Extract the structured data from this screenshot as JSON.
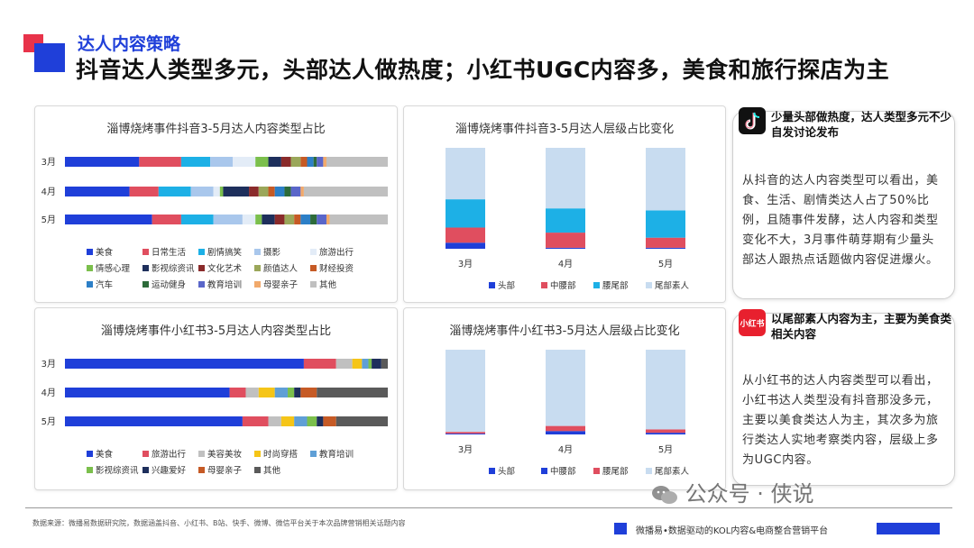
{
  "header": {
    "subtitle": "达人内容策略",
    "title": "抖音达人类型多元，头部达人做热度；小红书UGC内容多，美食和旅行探店为主"
  },
  "watermark": "公众号 · 侠说",
  "footer": {
    "source": "数据来源：微播易数据研究院，数据涵盖抖音、小红书、B站、快手、微博、微信平台关于本次品牌营销相关话题内容",
    "brand": "微播易•数据驱动的KOL内容&电商整合营销平台"
  },
  "cards": [
    {
      "icon": "tiktok-icon",
      "heading": "少量头部做热度，达人类型多元不少自发讨论发布",
      "body": "从抖音的达人内容类型可以看出，美食、生活、剧情类达人占了50%比例，且随事件发酵，达人内容和类型变化不大，3月事件萌芽期有少量头部达人跟热点话题做内容促进爆火。"
    },
    {
      "icon": "xiaohongshu-icon",
      "icon_text": "小红书",
      "heading": "以尾部素人内容为主，主要为美食类相关内容",
      "body": "从小红书的达人内容类型可以看出，小红书达人类型没有抖音那没多元，主要以美食类达人为主，其次多为旅行类达人实地考察类内容，层级上多为UGC内容。"
    }
  ],
  "chart_data": [
    {
      "type": "bar",
      "orientation": "horizontal",
      "stacked": "percent",
      "title": "淄博烧烤事件抖音3-5月达人内容类型占比",
      "categories": [
        "3月",
        "4月",
        "5月"
      ],
      "series": [
        {
          "name": "美食",
          "color": "#1f3fd9",
          "values": [
            23,
            20,
            27
          ]
        },
        {
          "name": "日常生活",
          "color": "#e04e5f",
          "values": [
            13,
            9,
            9
          ]
        },
        {
          "name": "剧情搞笑",
          "color": "#1db0e6",
          "values": [
            9,
            10,
            10
          ]
        },
        {
          "name": "摄影",
          "color": "#a9c7ec",
          "values": [
            7,
            7,
            9
          ]
        },
        {
          "name": "旅游出行",
          "color": "#e3ecf7",
          "values": [
            7,
            2,
            4
          ]
        },
        {
          "name": "情感心理",
          "color": "#7bbf4c",
          "values": [
            4,
            1,
            2
          ]
        },
        {
          "name": "影视综资讯",
          "color": "#1e2f5c",
          "values": [
            4,
            8,
            4
          ]
        },
        {
          "name": "文化艺术",
          "color": "#8a2b2b",
          "values": [
            3,
            3,
            3
          ]
        },
        {
          "name": "颜值达人",
          "color": "#9ba75a",
          "values": [
            3,
            3,
            3
          ]
        },
        {
          "name": "财经投资",
          "color": "#c65a25",
          "values": [
            2,
            2,
            2
          ]
        },
        {
          "name": "汽车",
          "color": "#2c7fc7",
          "values": [
            2,
            3,
            3
          ]
        },
        {
          "name": "运动健身",
          "color": "#2d6b3a",
          "values": [
            1,
            2,
            2
          ]
        },
        {
          "name": "教育培训",
          "color": "#5a66c9",
          "values": [
            2,
            3,
            3
          ]
        },
        {
          "name": "母婴亲子",
          "color": "#f1a96b",
          "values": [
            1,
            1,
            1
          ]
        },
        {
          "name": "其他",
          "color": "#c0c0c0",
          "values": [
            19,
            26,
            18
          ]
        }
      ]
    },
    {
      "type": "bar",
      "orientation": "vertical",
      "stacked": "percent",
      "title": "淄博烧烤事件抖音3-5月达人层级占比变化",
      "categories": [
        "3月",
        "4月",
        "5月"
      ],
      "series": [
        {
          "name": "头部",
          "color": "#1f3fd9",
          "values": [
            6,
            1,
            1
          ]
        },
        {
          "name": "中腰部",
          "color": "#e04e5f",
          "values": [
            15,
            15,
            10
          ]
        },
        {
          "name": "腰尾部",
          "color": "#1db0e6",
          "values": [
            28,
            24,
            27
          ]
        },
        {
          "name": "尾部素人",
          "color": "#c8dcf0",
          "values": [
            51,
            60,
            62
          ]
        }
      ]
    },
    {
      "type": "bar",
      "orientation": "horizontal",
      "stacked": "percent",
      "title": "淄博烧烤事件小红书3-5月达人内容类型占比",
      "categories": [
        "3月",
        "4月",
        "5月"
      ],
      "series": [
        {
          "name": "美食",
          "color": "#1f3fd9",
          "values": [
            74,
            51,
            55
          ]
        },
        {
          "name": "旅游出行",
          "color": "#e04e5f",
          "values": [
            10,
            5,
            8
          ]
        },
        {
          "name": "美容美妆",
          "color": "#c0c0c0",
          "values": [
            5,
            4,
            4
          ]
        },
        {
          "name": "时尚穿搭",
          "color": "#f5c518",
          "values": [
            3,
            5,
            4
          ]
        },
        {
          "name": "教育培训",
          "color": "#5f9fd6",
          "values": [
            2,
            4,
            4
          ]
        },
        {
          "name": "影视综资讯",
          "color": "#7bbf4c",
          "values": [
            1,
            2,
            3
          ]
        },
        {
          "name": "兴趣爱好",
          "color": "#1e2f5c",
          "values": [
            3,
            2,
            2
          ]
        },
        {
          "name": "母婴亲子",
          "color": "#c65a25",
          "values": [
            0,
            5,
            4
          ]
        },
        {
          "name": "其他",
          "color": "#5a5a5a",
          "values": [
            2,
            22,
            16
          ]
        }
      ]
    },
    {
      "type": "bar",
      "orientation": "vertical",
      "stacked": "percent",
      "title": "淄博烧烤事件小红书3-5月达人层级占比变化",
      "categories": [
        "3月",
        "4月",
        "5月"
      ],
      "series": [
        {
          "name": "头部",
          "color": "#1f3fd9",
          "values": [
            0,
            0,
            0
          ]
        },
        {
          "name": "中腰部",
          "color": "#1f3fd9",
          "values": [
            1,
            4,
            2
          ]
        },
        {
          "name": "腰尾部",
          "color": "#e04e5f",
          "values": [
            2,
            6,
            4
          ]
        },
        {
          "name": "尾部素人",
          "color": "#c8dcf0",
          "values": [
            97,
            90,
            94
          ]
        }
      ]
    }
  ]
}
